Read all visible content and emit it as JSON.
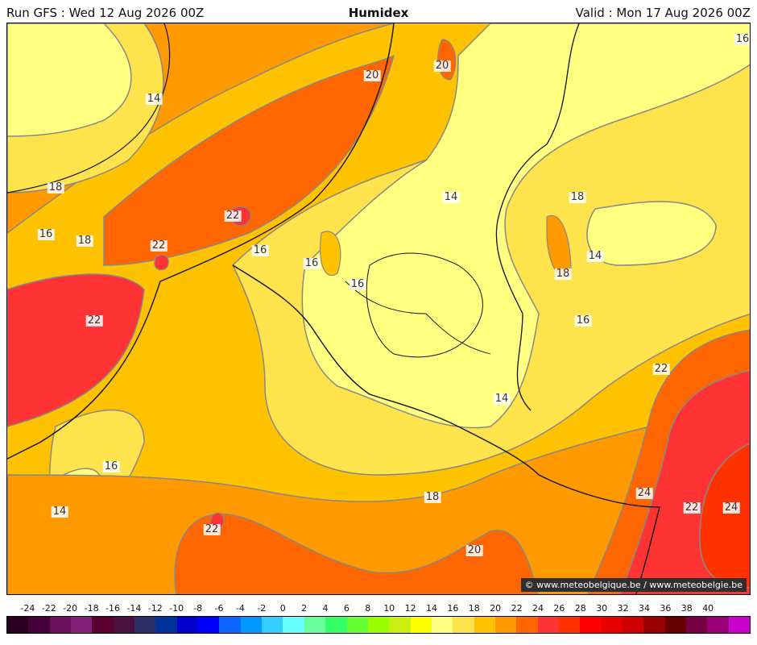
{
  "header": {
    "run": "Run GFS : Wed 12 Aug 2026 00Z",
    "title": "Humidex",
    "valid": "Valid : Mon 17 Aug 2026 00Z"
  },
  "map": {
    "contour_labels": [
      "16",
      "14",
      "20",
      "20",
      "18",
      "22",
      "16",
      "18",
      "22",
      "16",
      "16",
      "16",
      "14",
      "18",
      "14",
      "18",
      "16",
      "22",
      "22",
      "14",
      "16",
      "14",
      "18",
      "24",
      "22",
      "24",
      "20",
      "22"
    ],
    "credit": "© www.meteobelgique.be / www.meteobelgie.be"
  },
  "scale": {
    "ticks": [
      "-24",
      "-22",
      "-20",
      "-18",
      "-16",
      "-14",
      "-12",
      "-10",
      "-8",
      "-6",
      "-4",
      "-2",
      "0",
      "2",
      "4",
      "6",
      "8",
      "10",
      "12",
      "14",
      "16",
      "18",
      "20",
      "22",
      "24",
      "26",
      "28",
      "30",
      "32",
      "34",
      "36",
      "38",
      "40"
    ],
    "colors": [
      "#2a0022",
      "#45003a",
      "#6a0f5a",
      "#85207a",
      "#5c0032",
      "#4a1240",
      "#2e2e66",
      "#003399",
      "#0000cc",
      "#0000ff",
      "#0f66ff",
      "#0099ff",
      "#33ccff",
      "#66ffff",
      "#66ff99",
      "#33ff66",
      "#66ff33",
      "#99ff00",
      "#ccee11",
      "#ffff00",
      "#ffff80",
      "#ffe34d",
      "#ffc200",
      "#ff9900",
      "#ff6600",
      "#ff3333",
      "#ff3300",
      "#ff0000",
      "#e60000",
      "#cc0000",
      "#990000",
      "#660000",
      "#770044",
      "#990077",
      "#cc00cc"
    ]
  }
}
